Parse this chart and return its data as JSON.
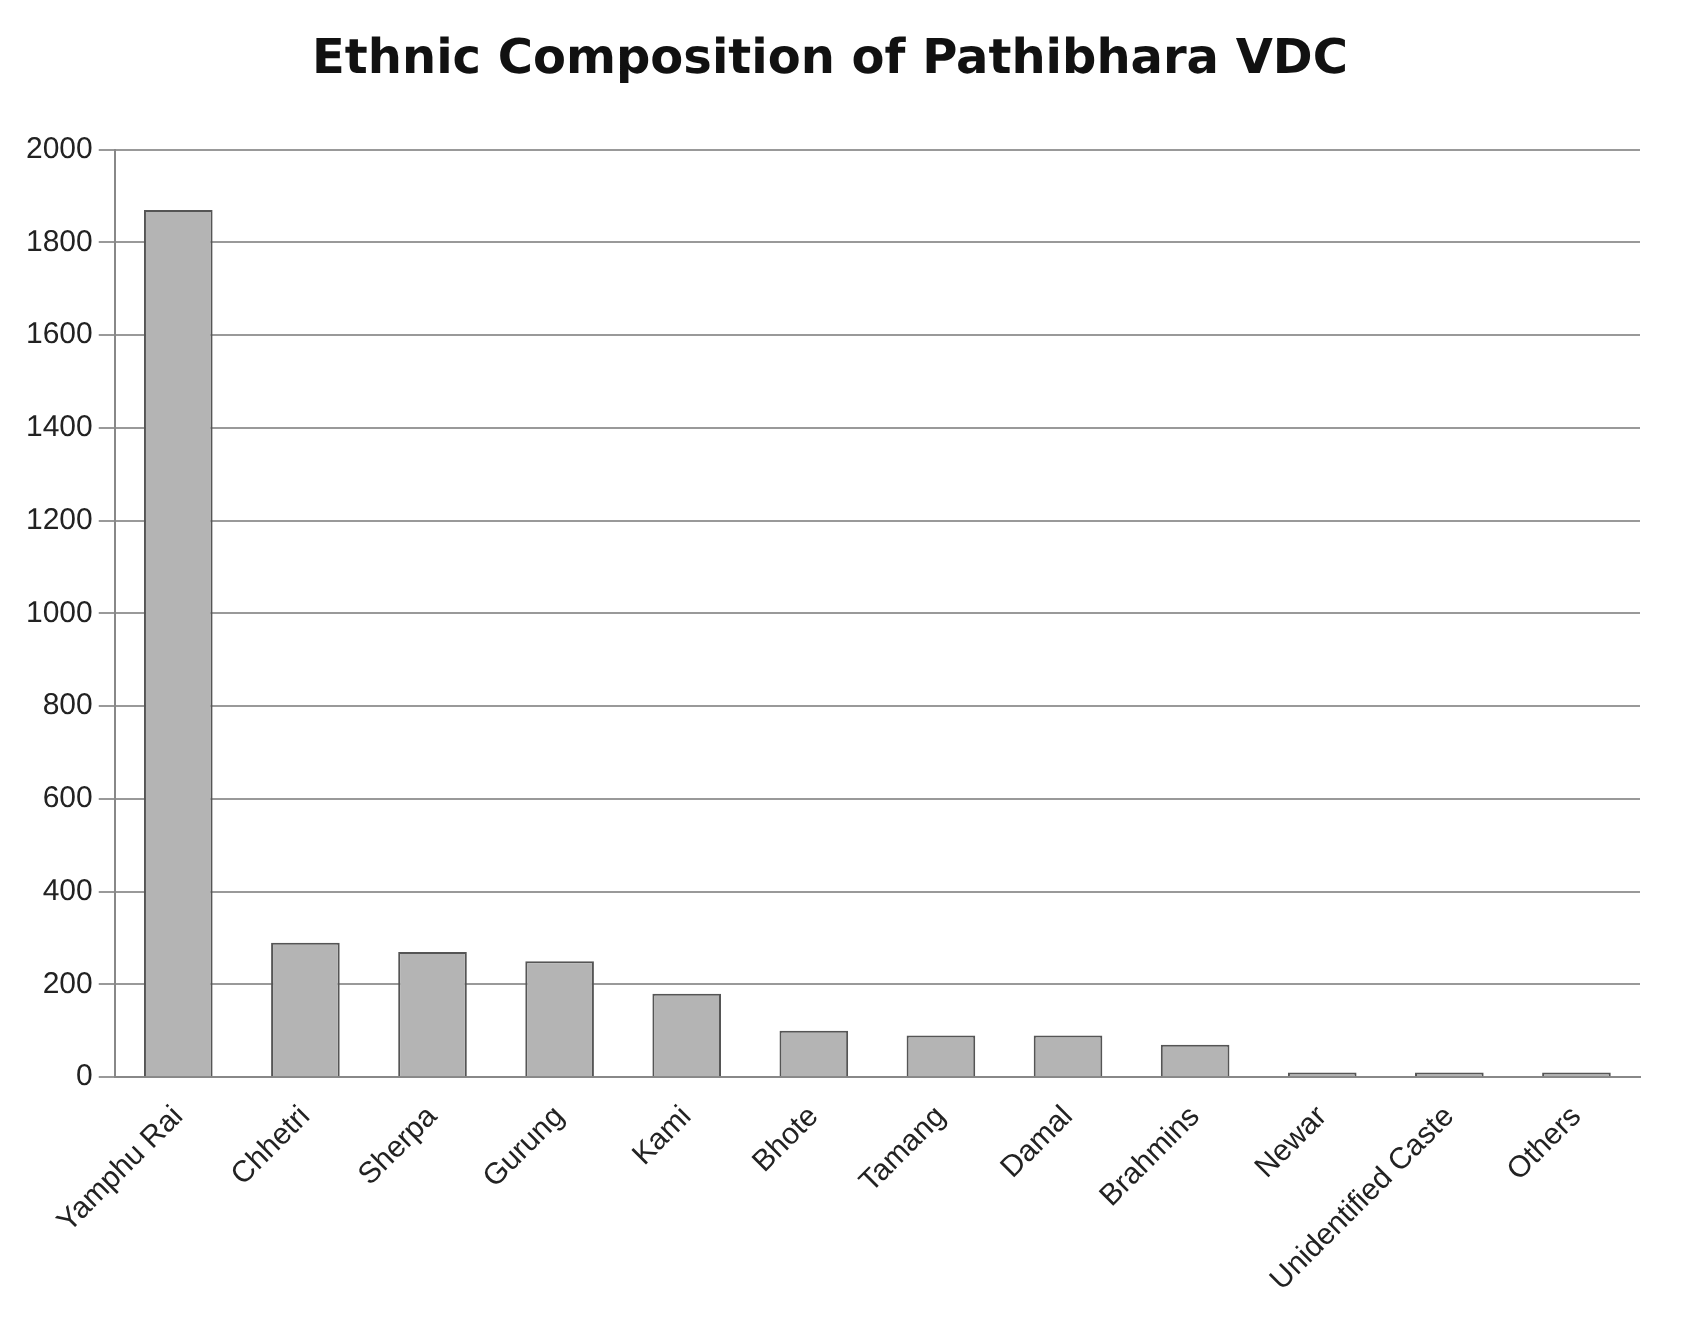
{
  "chart_data": {
    "type": "bar",
    "title": "Ethnic Composition of Pathibhara VDC",
    "categories": [
      "Yamphu Rai",
      "Chhetri",
      "Sherpa",
      "Gurung",
      "Kami",
      "Bhote",
      "Tamang",
      "Damal",
      "Brahmins",
      "Newar",
      "Unidentified Caste",
      "Others"
    ],
    "values": [
      1870,
      290,
      270,
      250,
      180,
      100,
      90,
      90,
      70,
      10,
      10,
      10
    ],
    "color": "#b4b4b4",
    "ylim": [
      0,
      2000
    ],
    "yticks": [
      0,
      200,
      400,
      600,
      800,
      1000,
      1200,
      1400,
      1600,
      1800,
      2000
    ],
    "grid": "y",
    "legend": false
  }
}
